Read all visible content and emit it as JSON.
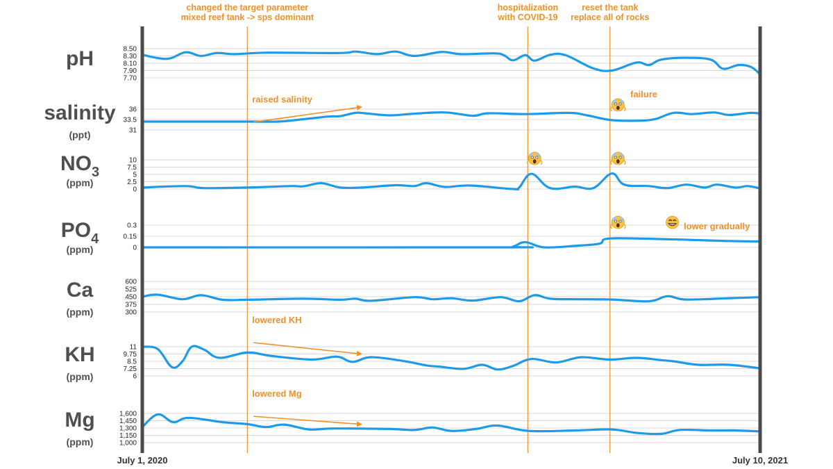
{
  "chart_data": {
    "type": "line",
    "x_axis": {
      "start": "July 1, 2020",
      "end": "July 10, 2021"
    },
    "events": [
      {
        "lines": [
          "changed the target parameter",
          "mixed reef tank -> sps dominant"
        ],
        "x": 0.17
      },
      {
        "lines": [
          "hospitalization",
          "with COVID-19"
        ],
        "x": 0.624
      },
      {
        "lines": [
          "reset the tank",
          "replace all of rocks"
        ],
        "x": 0.757
      }
    ],
    "annotations": [
      {
        "text": "raised salinity",
        "panel": 1,
        "arrow": true,
        "x0": 0.18,
        "v0": 32.9,
        "x1": 0.355,
        "v1": 36.5
      },
      {
        "text": "lowered KH",
        "panel": 5,
        "arrow": true,
        "x0": 0.18,
        "v0": 11.7,
        "x1": 0.355,
        "v1": 9.75
      },
      {
        "text": "lowered Mg",
        "panel": 6,
        "arrow": true,
        "x0": 0.18,
        "v0": 1540,
        "x1": 0.355,
        "v1": 1375
      },
      {
        "text": "failure",
        "panel": 1,
        "arrow": false
      },
      {
        "text": "lower gradually",
        "panel": 3,
        "arrow": false
      }
    ],
    "emojis": [
      {
        "kind": "shocked",
        "panel": 1,
        "x": 0.77
      },
      {
        "kind": "shocked",
        "panel": 2,
        "x": 0.635
      },
      {
        "kind": "shocked",
        "panel": 2,
        "x": 0.77
      },
      {
        "kind": "shocked",
        "panel": 3,
        "x": 0.77
      },
      {
        "kind": "grin",
        "panel": 3,
        "x": 0.858
      }
    ],
    "series": [
      {
        "name": "pH",
        "unit": "",
        "ticks": [
          "8.50",
          "8.30",
          "8.10",
          "7.90",
          "7.70"
        ],
        "ylim": [
          7.7,
          8.5
        ],
        "points": [
          [
            0,
            8.33
          ],
          [
            0.04,
            8.22
          ],
          [
            0.07,
            8.4
          ],
          [
            0.095,
            8.3
          ],
          [
            0.12,
            8.38
          ],
          [
            0.15,
            8.35
          ],
          [
            0.2,
            8.39
          ],
          [
            0.32,
            8.38
          ],
          [
            0.345,
            8.42
          ],
          [
            0.38,
            8.35
          ],
          [
            0.41,
            8.42
          ],
          [
            0.44,
            8.3
          ],
          [
            0.485,
            8.41
          ],
          [
            0.515,
            8.35
          ],
          [
            0.57,
            8.37
          ],
          [
            0.585,
            8.32
          ],
          [
            0.6,
            8.18
          ],
          [
            0.62,
            8.32
          ],
          [
            0.635,
            8.17
          ],
          [
            0.66,
            8.33
          ],
          [
            0.685,
            8.32
          ],
          [
            0.73,
            7.96
          ],
          [
            0.76,
            7.9
          ],
          [
            0.8,
            8.12
          ],
          [
            0.82,
            8.05
          ],
          [
            0.84,
            8.2
          ],
          [
            0.88,
            8.25
          ],
          [
            0.92,
            8.2
          ],
          [
            0.94,
            7.95
          ],
          [
            0.965,
            8.05
          ],
          [
            0.985,
            8.0
          ],
          [
            1,
            7.8
          ]
        ]
      },
      {
        "name": "salinity",
        "unit": "(ppt)",
        "ticks": [
          "36",
          "33.5",
          "31"
        ],
        "ylim": [
          31,
          36
        ],
        "points": [
          [
            0,
            33
          ],
          [
            0.17,
            33
          ],
          [
            0.22,
            33
          ],
          [
            0.25,
            33.4
          ],
          [
            0.3,
            34.2
          ],
          [
            0.32,
            34.3
          ],
          [
            0.345,
            35.1
          ],
          [
            0.36,
            35
          ],
          [
            0.4,
            34.5
          ],
          [
            0.44,
            34.9
          ],
          [
            0.49,
            35.2
          ],
          [
            0.535,
            34.4
          ],
          [
            0.56,
            35
          ],
          [
            0.62,
            34.8
          ],
          [
            0.69,
            35.1
          ],
          [
            0.72,
            34.5
          ],
          [
            0.757,
            33.4
          ],
          [
            0.8,
            33.2
          ],
          [
            0.83,
            33.6
          ],
          [
            0.86,
            35.1
          ],
          [
            0.89,
            34.8
          ],
          [
            0.925,
            35.2
          ],
          [
            0.95,
            34.6
          ],
          [
            0.985,
            35.1
          ],
          [
            1,
            34.9
          ]
        ]
      },
      {
        "name": "NO",
        "sub": "3",
        "unit": "(ppm)",
        "ticks": [
          "10",
          "7.5",
          "5",
          "2.5",
          "0"
        ],
        "ylim": [
          0,
          10
        ],
        "points": [
          [
            0,
            0.5
          ],
          [
            0.07,
            1
          ],
          [
            0.1,
            0.3
          ],
          [
            0.17,
            0.5
          ],
          [
            0.24,
            1
          ],
          [
            0.26,
            0.9
          ],
          [
            0.29,
            2
          ],
          [
            0.32,
            0.5
          ],
          [
            0.355,
            0.5
          ],
          [
            0.41,
            1.3
          ],
          [
            0.44,
            1
          ],
          [
            0.46,
            2
          ],
          [
            0.49,
            0.7
          ],
          [
            0.53,
            1.2
          ],
          [
            0.6,
            0
          ],
          [
            0.61,
            0.5
          ],
          [
            0.63,
            5.2
          ],
          [
            0.66,
            0.3
          ],
          [
            0.7,
            0.8
          ],
          [
            0.73,
            0.3
          ],
          [
            0.76,
            5.3
          ],
          [
            0.78,
            1.5
          ],
          [
            0.82,
            1
          ],
          [
            0.85,
            0.3
          ],
          [
            0.88,
            1.5
          ],
          [
            0.91,
            0.5
          ],
          [
            0.93,
            1.5
          ],
          [
            0.96,
            0.5
          ],
          [
            0.98,
            1
          ],
          [
            1,
            0.2
          ]
        ]
      },
      {
        "name": "PO",
        "sub": "4",
        "unit": "(ppm)",
        "ticks": [
          "0.3",
          "0.15",
          "0"
        ],
        "ylim": [
          0,
          0.3
        ],
        "points": [
          [
            0,
            0
          ],
          [
            0.58,
            0
          ],
          [
            0.6,
            0.01
          ],
          [
            0.62,
            0.07
          ],
          [
            0.65,
            0
          ],
          [
            0.7,
            0.02
          ],
          [
            0.74,
            0.05
          ],
          [
            0.757,
            0.12
          ],
          [
            0.85,
            0.11
          ],
          [
            0.95,
            0.085
          ],
          [
            1,
            0.08
          ]
        ]
      },
      {
        "name": "Ca",
        "unit": "(ppm)",
        "ticks": [
          "600",
          "525",
          "450",
          "375",
          "300"
        ],
        "ylim": [
          300,
          600
        ],
        "points": [
          [
            0,
            450
          ],
          [
            0.025,
            470
          ],
          [
            0.065,
            425
          ],
          [
            0.095,
            465
          ],
          [
            0.13,
            420
          ],
          [
            0.17,
            420
          ],
          [
            0.26,
            430
          ],
          [
            0.32,
            420
          ],
          [
            0.345,
            430
          ],
          [
            0.37,
            410
          ],
          [
            0.44,
            445
          ],
          [
            0.47,
            425
          ],
          [
            0.5,
            435
          ],
          [
            0.535,
            412
          ],
          [
            0.58,
            445
          ],
          [
            0.61,
            405
          ],
          [
            0.635,
            465
          ],
          [
            0.66,
            430
          ],
          [
            0.7,
            425
          ],
          [
            0.76,
            422
          ],
          [
            0.82,
            405
          ],
          [
            0.85,
            455
          ],
          [
            0.88,
            422
          ],
          [
            0.95,
            435
          ],
          [
            1,
            445
          ]
        ]
      },
      {
        "name": "KH",
        "unit": "(ppm)",
        "ticks": [
          "11",
          "9.75",
          "8.5",
          "7.25",
          "6"
        ],
        "ylim": [
          6,
          11
        ],
        "points": [
          [
            0,
            11
          ],
          [
            0.025,
            10.6
          ],
          [
            0.048,
            7.5
          ],
          [
            0.065,
            8.5
          ],
          [
            0.08,
            11
          ],
          [
            0.1,
            10.5
          ],
          [
            0.125,
            9.1
          ],
          [
            0.17,
            10
          ],
          [
            0.21,
            9.4
          ],
          [
            0.275,
            8.8
          ],
          [
            0.315,
            9.3
          ],
          [
            0.34,
            8.4
          ],
          [
            0.37,
            9.2
          ],
          [
            0.42,
            8.6
          ],
          [
            0.46,
            7.8
          ],
          [
            0.48,
            7.6
          ],
          [
            0.52,
            7.2
          ],
          [
            0.55,
            7.9
          ],
          [
            0.575,
            7.1
          ],
          [
            0.6,
            7.7
          ],
          [
            0.63,
            8.9
          ],
          [
            0.67,
            8.3
          ],
          [
            0.71,
            9.2
          ],
          [
            0.757,
            8.8
          ],
          [
            0.8,
            9.1
          ],
          [
            0.84,
            8.7
          ],
          [
            0.86,
            8.5
          ],
          [
            0.9,
            7.9
          ],
          [
            0.95,
            7.9
          ],
          [
            1,
            7.3
          ]
        ]
      },
      {
        "name": "Mg",
        "unit": "(ppm)",
        "ticks": [
          "1,600",
          "1,450",
          "1,300",
          "1,150",
          "1,000"
        ],
        "ylim": [
          1000,
          1600
        ],
        "points": [
          [
            0,
            1320
          ],
          [
            0.025,
            1580
          ],
          [
            0.05,
            1420
          ],
          [
            0.075,
            1510
          ],
          [
            0.13,
            1420
          ],
          [
            0.17,
            1380
          ],
          [
            0.2,
            1320
          ],
          [
            0.23,
            1370
          ],
          [
            0.27,
            1270
          ],
          [
            0.31,
            1290
          ],
          [
            0.4,
            1280
          ],
          [
            0.44,
            1260
          ],
          [
            0.47,
            1310
          ],
          [
            0.5,
            1240
          ],
          [
            0.54,
            1280
          ],
          [
            0.575,
            1350
          ],
          [
            0.625,
            1240
          ],
          [
            0.7,
            1250
          ],
          [
            0.76,
            1270
          ],
          [
            0.8,
            1200
          ],
          [
            0.84,
            1180
          ],
          [
            0.87,
            1260
          ],
          [
            0.92,
            1250
          ],
          [
            0.96,
            1250
          ],
          [
            1,
            1230
          ]
        ]
      }
    ],
    "colors": {
      "line": "#1e9be8",
      "annotation": "#f09028",
      "axis": "#4a4a4a",
      "grid": "#d8d8d8",
      "label": "#4f4f4f",
      "emoji": "#f6c343"
    }
  }
}
